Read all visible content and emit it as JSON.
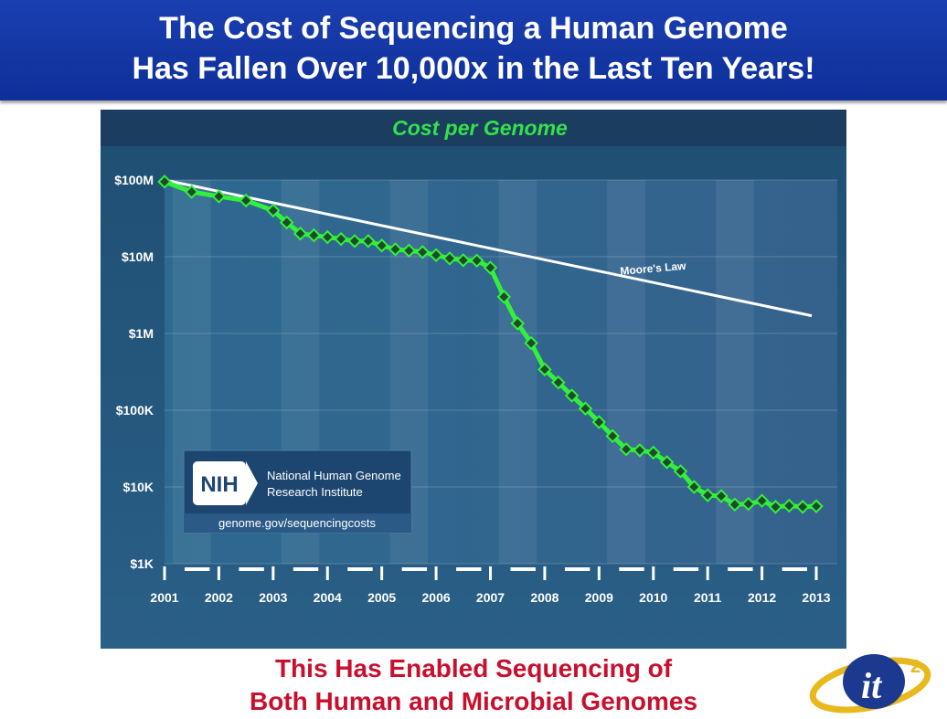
{
  "header": {
    "line1": "The Cost of Sequencing a Human Genome",
    "line2": "Has Fallen Over  10,000x in the Last Ten Years!"
  },
  "footer": {
    "line1": "This Has Enabled Sequencing of",
    "line2": "Both Human and Microbial Genomes"
  },
  "nih_box": {
    "abbr": "NIH",
    "name_line1": "National Human Genome",
    "name_line2": "Research Institute",
    "url": "genome.gov/sequencingcosts"
  },
  "logo": {
    "text": "it",
    "superscript": "2"
  },
  "colors": {
    "banner": "#1535a8",
    "footer_text": "#c8102e",
    "series_line": "#33f03c",
    "marker": "#1f4a2a",
    "moores_law": "#ffffff",
    "chart_title": "#33e24a",
    "plot_background": "#2c5a80"
  },
  "chart_data": {
    "type": "line",
    "title": "Cost per Genome",
    "xlabel": "",
    "ylabel": "",
    "y_scale": "log",
    "ylim": [
      1000,
      100000000
    ],
    "y_ticks": [
      {
        "value": 100000000,
        "label": "$100M"
      },
      {
        "value": 10000000,
        "label": "$10M"
      },
      {
        "value": 1000000,
        "label": "$1M"
      },
      {
        "value": 100000,
        "label": "$100K"
      },
      {
        "value": 10000,
        "label": "$10K"
      },
      {
        "value": 1000,
        "label": "$1K"
      }
    ],
    "xlim": [
      2001,
      2013
    ],
    "x_ticks": [
      2001,
      2002,
      2003,
      2004,
      2005,
      2006,
      2007,
      2008,
      2009,
      2010,
      2011,
      2012,
      2013
    ],
    "grid": "alternating vertical bands",
    "series": [
      {
        "role": "cost",
        "x": [
          2001.0,
          2001.5,
          2002.0,
          2002.5,
          2003.0,
          2003.25,
          2003.5,
          2003.75,
          2004.0,
          2004.25,
          2004.5,
          2004.75,
          2005.0,
          2005.25,
          2005.5,
          2005.75,
          2006.0,
          2006.25,
          2006.5,
          2006.75,
          2007.0,
          2007.25,
          2007.5,
          2007.75,
          2008.0,
          2008.25,
          2008.5,
          2008.75,
          2009.0,
          2009.25,
          2009.5,
          2009.75,
          2010.0,
          2010.25,
          2010.5,
          2010.75,
          2011.0,
          2011.25,
          2011.5,
          2011.75,
          2012.0,
          2012.25,
          2012.5,
          2012.75,
          2013.0
        ],
        "values": [
          95000000,
          70000000,
          61000000,
          54000000,
          40000000,
          28000000,
          20000000,
          19000000,
          18000000,
          17000000,
          16000000,
          16000000,
          14000000,
          12500000,
          12000000,
          11500000,
          10500000,
          9500000,
          9000000,
          8900000,
          7200000,
          3000000,
          1350000,
          750000,
          340000,
          230000,
          155000,
          105000,
          70000,
          46000,
          31000,
          30000,
          28000,
          21000,
          16000,
          10000,
          7800,
          7600,
          5900,
          6000,
          6600,
          5500,
          5700,
          5500,
          5600
        ]
      },
      {
        "name": "Moore's Law",
        "x": [
          2001.0,
          2013.0
        ],
        "values": [
          100000000,
          1700000
        ]
      }
    ]
  }
}
